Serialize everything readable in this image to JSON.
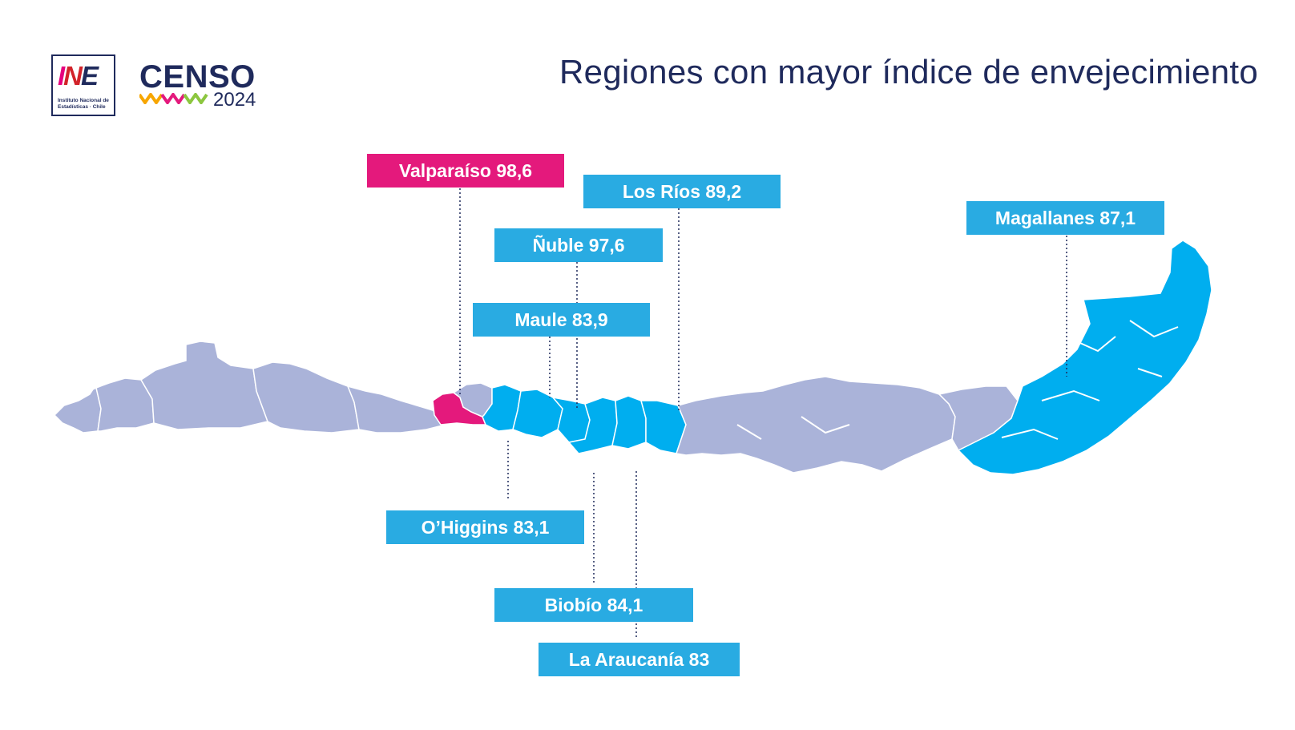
{
  "header": {
    "title": "Regiones con mayor índice de envejecimiento",
    "ine_logo": {
      "mark": "INE",
      "subtitle": "Instituto Nacional de Estadísticas · Chile"
    },
    "censo_logo": {
      "word": "CENSO",
      "year": "2024"
    }
  },
  "colors": {
    "highlight": "#e4197c",
    "selected": "#00aeef",
    "label_blue": "#29abe2",
    "other_regions": "#aab3d9",
    "text": "#1f2a5c"
  },
  "labels": [
    {
      "id": "valparaiso",
      "text": "Valparaíso 98,6",
      "highlight": true
    },
    {
      "id": "los-rios",
      "text": "Los Ríos 89,2",
      "highlight": false
    },
    {
      "id": "magallanes",
      "text": "Magallanes 87,1",
      "highlight": false
    },
    {
      "id": "nuble",
      "text": "Ñuble 97,6",
      "highlight": false
    },
    {
      "id": "maule",
      "text": "Maule 83,9",
      "highlight": false
    },
    {
      "id": "ohiggins",
      "text": "O’Higgins 83,1",
      "highlight": false
    },
    {
      "id": "biobio",
      "text": "Biobío 84,1",
      "highlight": false
    },
    {
      "id": "la-araucania",
      "text": "La Araucanía 83",
      "highlight": false
    }
  ]
}
